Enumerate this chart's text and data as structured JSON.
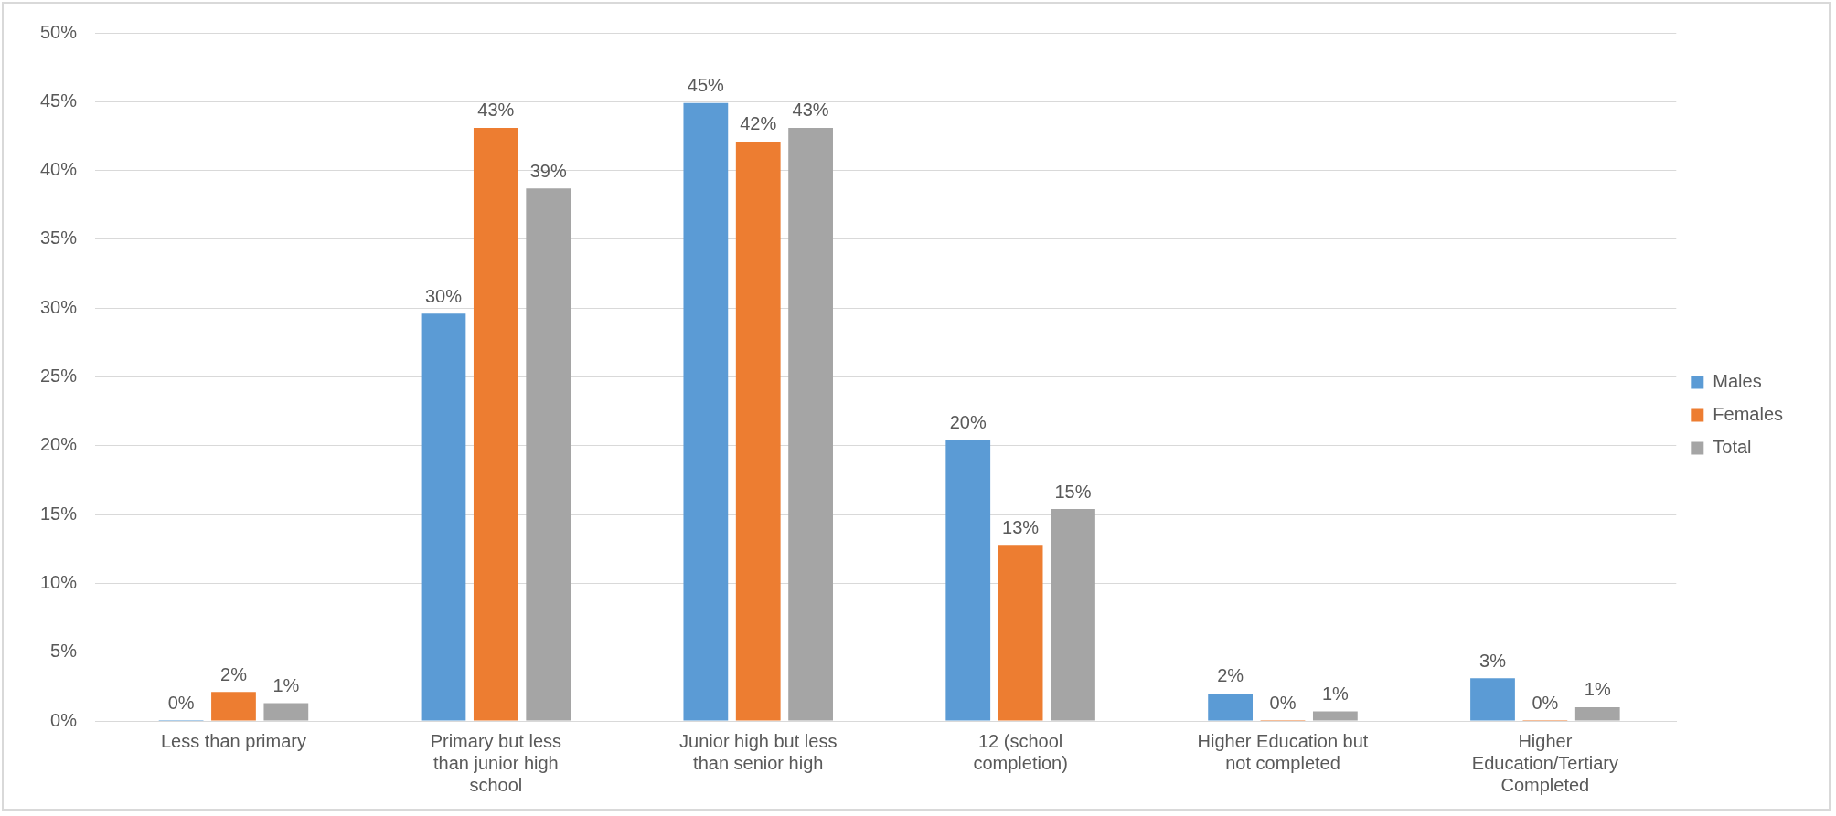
{
  "chart_data": {
    "type": "bar",
    "categories": [
      "Less than primary",
      "Primary but less than junior high school",
      "Junior high but less than senior high",
      "12 (school completion)",
      "Higher Education but not completed",
      "Higher Education/Tertiary Completed"
    ],
    "series": [
      {
        "name": "Males",
        "color": "#5b9bd5",
        "values": [
          0,
          29.6,
          44.9,
          20.4,
          2.0,
          3.1
        ],
        "value_labels": [
          "0%",
          "30%",
          "45%",
          "20%",
          "2%",
          "3%"
        ]
      },
      {
        "name": "Females",
        "color": "#ed7d31",
        "values": [
          2.1,
          43.1,
          42.1,
          12.8,
          0,
          0
        ],
        "value_labels": [
          "2%",
          "43%",
          "42%",
          "13%",
          "0%",
          "0%"
        ]
      },
      {
        "name": "Total",
        "color": "#a5a5a5",
        "values": [
          1.3,
          38.7,
          43.1,
          15.4,
          0.7,
          1.0
        ],
        "value_labels": [
          "1%",
          "39%",
          "43%",
          "15%",
          "1%",
          "1%"
        ]
      }
    ],
    "ylim": [
      0,
      50
    ],
    "yticks": [
      {
        "value": 0,
        "label": "0%"
      },
      {
        "value": 5,
        "label": "5%"
      },
      {
        "value": 10,
        "label": "10%"
      },
      {
        "value": 15,
        "label": "15%"
      },
      {
        "value": 20,
        "label": "20%"
      },
      {
        "value": 25,
        "label": "25%"
      },
      {
        "value": 30,
        "label": "30%"
      },
      {
        "value": 35,
        "label": "35%"
      },
      {
        "value": 40,
        "label": "40%"
      },
      {
        "value": 45,
        "label": "45%"
      },
      {
        "value": 50,
        "label": "50%"
      }
    ],
    "grid": "y",
    "legend": "right"
  }
}
